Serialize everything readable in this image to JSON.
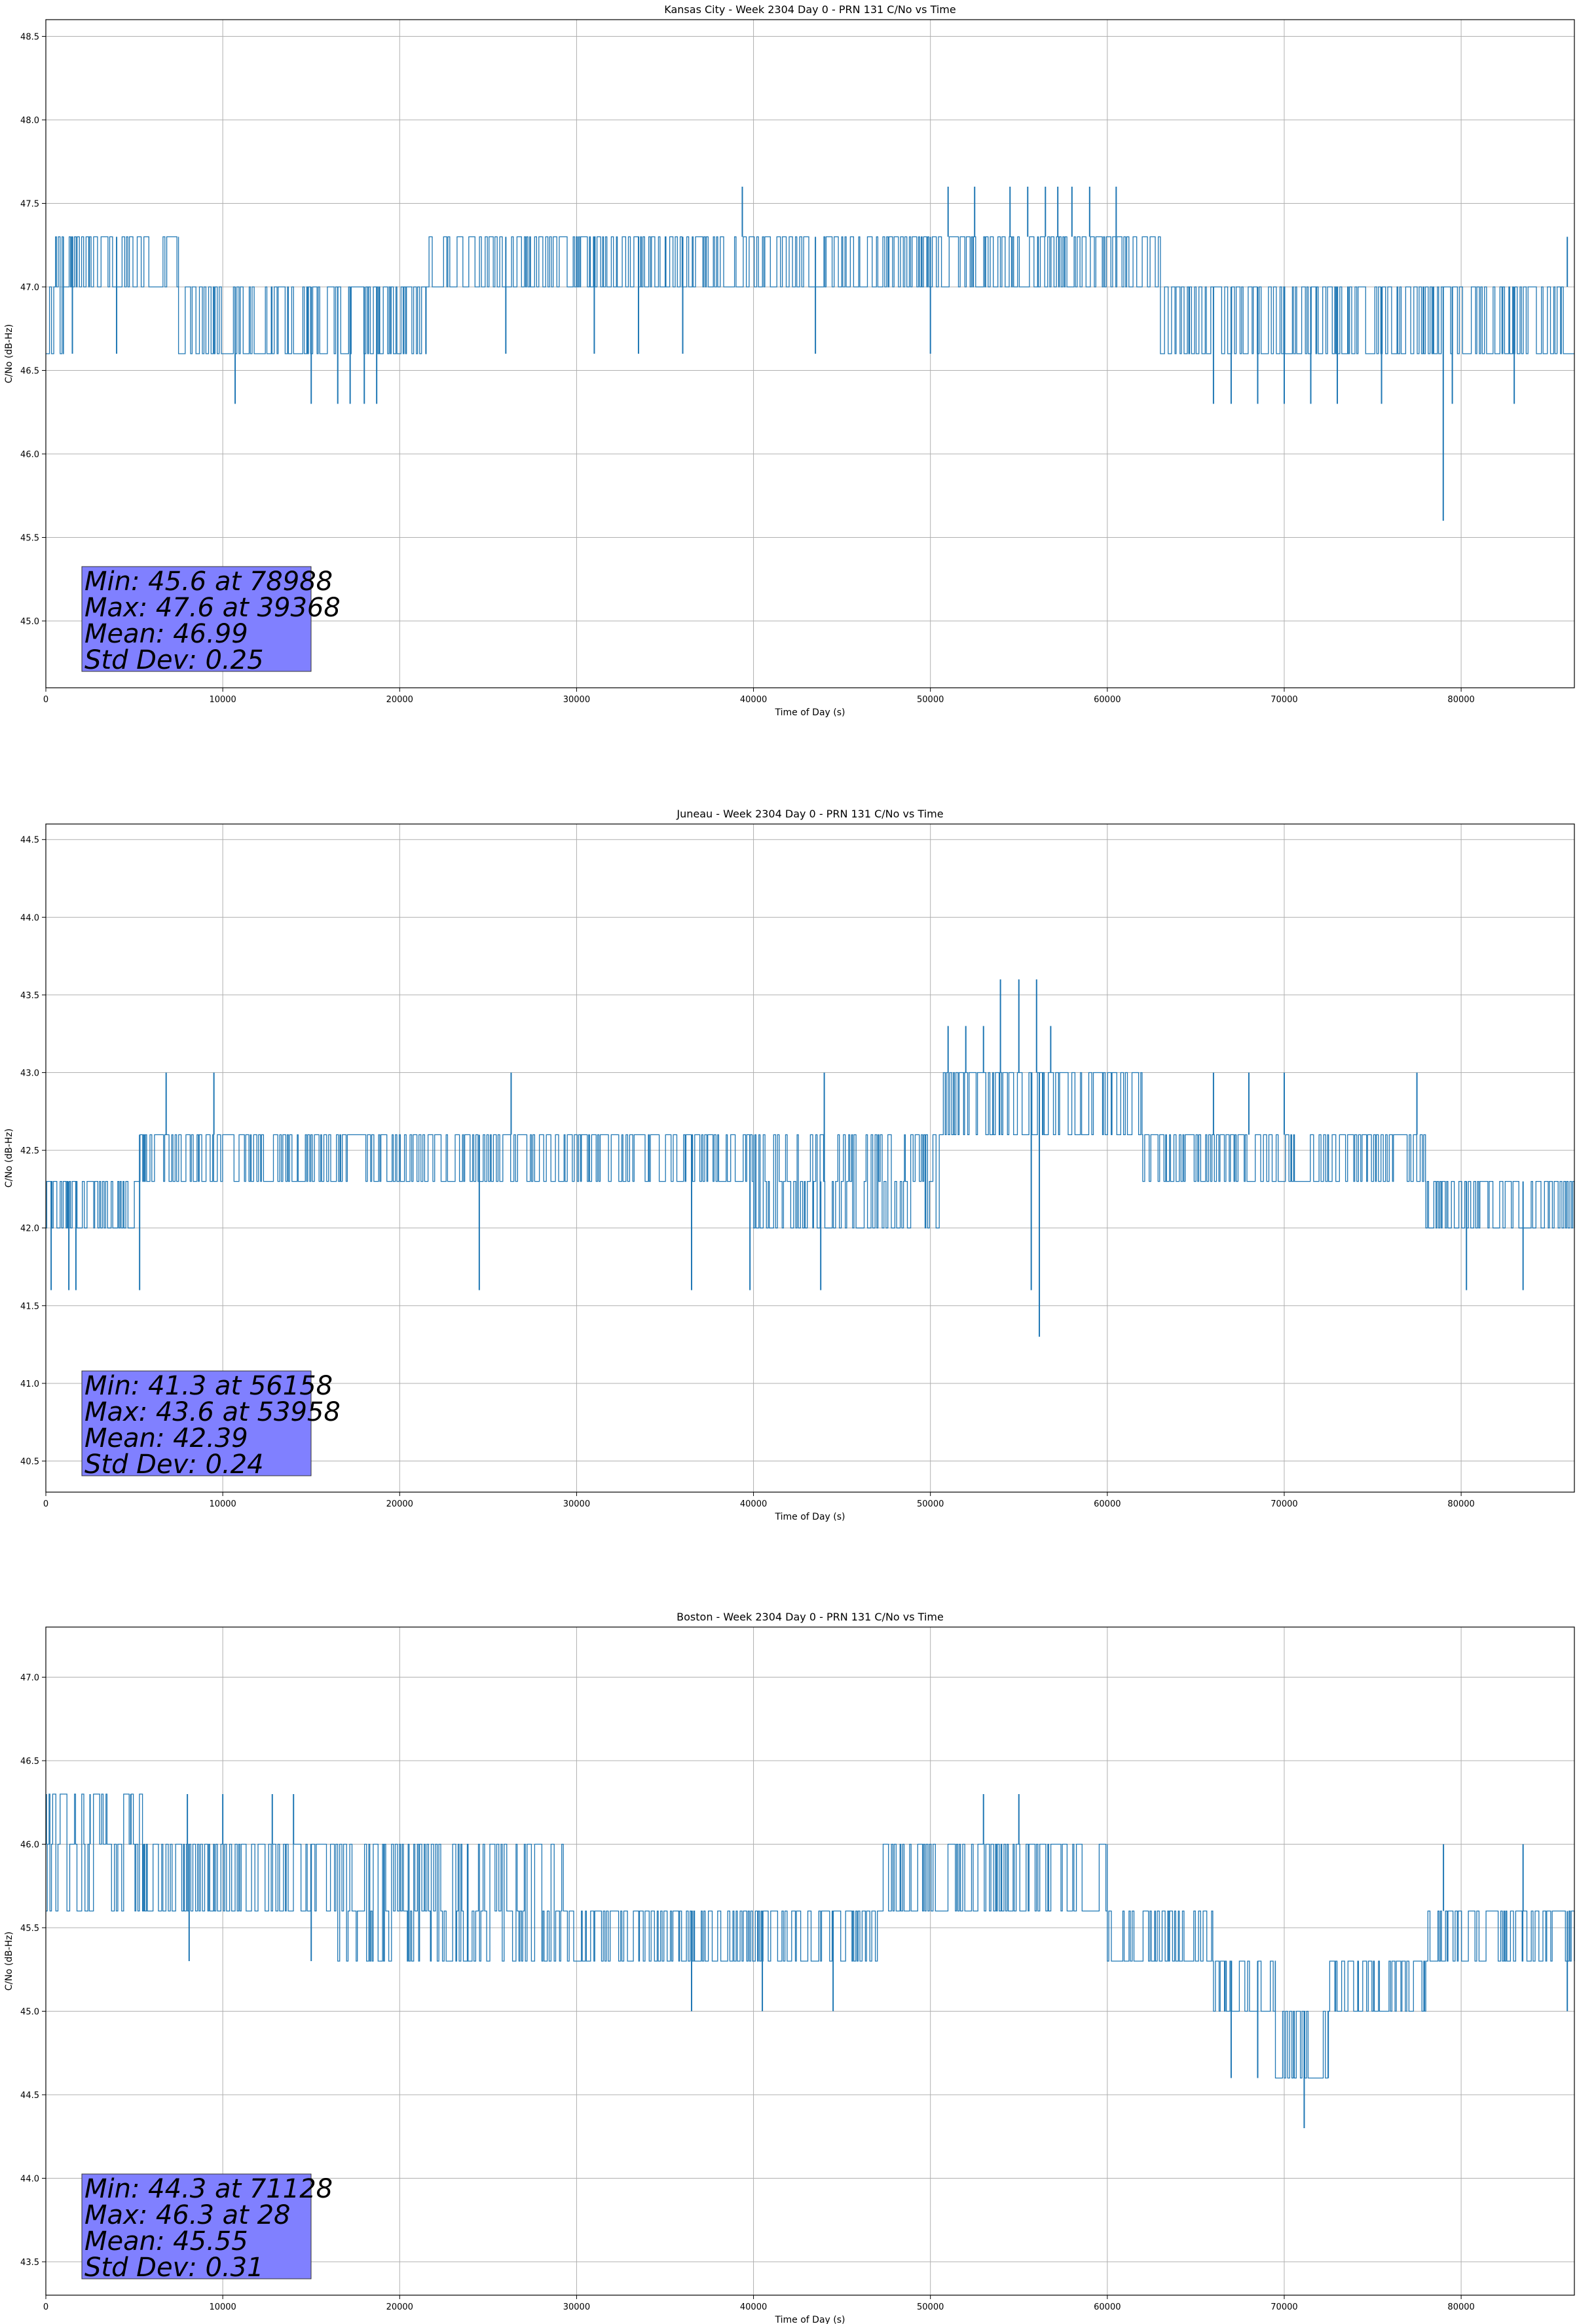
{
  "figure": {
    "background": "#ffffff",
    "series_color": "#1f77b4",
    "stats_box_color": "#8080ff",
    "grid_color": "#b0b0b0"
  },
  "chart_data": [
    {
      "type": "line",
      "title": "Kansas City - Week 2304 Day 0 - PRN 131 C/No vs Time",
      "xlabel": "Time of Day (s)",
      "ylabel": "C/No (dB-Hz)",
      "xlim": [
        0,
        86400
      ],
      "ylim": [
        44.6,
        48.6
      ],
      "xticks": [
        0,
        10000,
        20000,
        30000,
        40000,
        50000,
        60000,
        70000,
        80000
      ],
      "yticks": [
        45.0,
        45.5,
        46.0,
        46.5,
        47.0,
        47.5,
        48.0,
        48.5
      ],
      "grid": true,
      "stats": [
        "Min: 45.6 at 78988",
        "Max: 47.6 at 39368",
        "Mean: 46.99",
        "Std Dev: 0.25"
      ],
      "series": [
        {
          "segments": [
            {
              "x0": 0,
              "x1": 1000,
              "levels": [
                46.6,
                47.0,
                47.3
              ]
            },
            {
              "x0": 1000,
              "x1": 7500,
              "levels": [
                47.0,
                47.3
              ]
            },
            {
              "x0": 7500,
              "x1": 21500,
              "levels": [
                46.6,
                47.0
              ]
            },
            {
              "x0": 21500,
              "x1": 63000,
              "levels": [
                47.0,
                47.3
              ]
            },
            {
              "x0": 63000,
              "x1": 86400,
              "levels": [
                46.6,
                47.0
              ]
            }
          ],
          "spikes": [
            {
              "x": 1500,
              "y": 46.6
            },
            {
              "x": 4000,
              "y": 46.6
            },
            {
              "x": 10700,
              "y": 46.3
            },
            {
              "x": 15000,
              "y": 46.3
            },
            {
              "x": 16500,
              "y": 46.3
            },
            {
              "x": 17200,
              "y": 46.3
            },
            {
              "x": 18000,
              "y": 46.3
            },
            {
              "x": 18700,
              "y": 46.3
            },
            {
              "x": 26000,
              "y": 46.6
            },
            {
              "x": 31000,
              "y": 46.6
            },
            {
              "x": 33500,
              "y": 46.6
            },
            {
              "x": 36000,
              "y": 46.6
            },
            {
              "x": 39368,
              "y": 47.6
            },
            {
              "x": 43500,
              "y": 46.6
            },
            {
              "x": 50000,
              "y": 46.6
            },
            {
              "x": 51000,
              "y": 47.6
            },
            {
              "x": 52500,
              "y": 47.6
            },
            {
              "x": 54500,
              "y": 47.6
            },
            {
              "x": 55500,
              "y": 47.6
            },
            {
              "x": 56500,
              "y": 47.6
            },
            {
              "x": 57200,
              "y": 47.6
            },
            {
              "x": 58000,
              "y": 47.6
            },
            {
              "x": 59000,
              "y": 47.6
            },
            {
              "x": 60500,
              "y": 47.6
            },
            {
              "x": 66000,
              "y": 46.3
            },
            {
              "x": 67000,
              "y": 46.3
            },
            {
              "x": 68500,
              "y": 46.3
            },
            {
              "x": 70000,
              "y": 46.3
            },
            {
              "x": 71500,
              "y": 46.3
            },
            {
              "x": 73000,
              "y": 46.3
            },
            {
              "x": 75500,
              "y": 46.3
            },
            {
              "x": 78988,
              "y": 45.6
            },
            {
              "x": 79500,
              "y": 46.3
            },
            {
              "x": 83000,
              "y": 46.3
            },
            {
              "x": 86000,
              "y": 47.3
            }
          ]
        }
      ]
    },
    {
      "type": "line",
      "title": "Juneau - Week 2304 Day 0 - PRN 131 C/No vs Time",
      "xlabel": "Time of Day (s)",
      "ylabel": "C/No (dB-Hz)",
      "xlim": [
        0,
        86400
      ],
      "ylim": [
        40.3,
        44.6
      ],
      "xticks": [
        0,
        10000,
        20000,
        30000,
        40000,
        50000,
        60000,
        70000,
        80000
      ],
      "yticks": [
        40.5,
        41.0,
        41.5,
        42.0,
        42.5,
        43.0,
        43.5,
        44.0,
        44.5
      ],
      "grid": true,
      "stats": [
        "Min: 41.3 at 56158",
        "Max: 43.6 at 53958",
        "Mean: 42.39",
        "Std Dev: 0.24"
      ],
      "series": [
        {
          "segments": [
            {
              "x0": 0,
              "x1": 5000,
              "levels": [
                42.0,
                42.3
              ]
            },
            {
              "x0": 5000,
              "x1": 40000,
              "levels": [
                42.3,
                42.6
              ]
            },
            {
              "x0": 40000,
              "x1": 50500,
              "levels": [
                42.0,
                42.3,
                42.6
              ]
            },
            {
              "x0": 50500,
              "x1": 57000,
              "levels": [
                42.6,
                43.0
              ]
            },
            {
              "x0": 57000,
              "x1": 62000,
              "levels": [
                42.6,
                43.0
              ]
            },
            {
              "x0": 62000,
              "x1": 78000,
              "levels": [
                42.3,
                42.6
              ]
            },
            {
              "x0": 78000,
              "x1": 86400,
              "levels": [
                42.0,
                42.3
              ]
            }
          ],
          "spikes": [
            {
              "x": 300,
              "y": 41.6
            },
            {
              "x": 1300,
              "y": 41.6
            },
            {
              "x": 1700,
              "y": 41.6
            },
            {
              "x": 5300,
              "y": 41.6
            },
            {
              "x": 6800,
              "y": 43.0
            },
            {
              "x": 9500,
              "y": 43.0
            },
            {
              "x": 24500,
              "y": 41.6
            },
            {
              "x": 26300,
              "y": 43.0
            },
            {
              "x": 36500,
              "y": 41.6
            },
            {
              "x": 39800,
              "y": 41.6
            },
            {
              "x": 43800,
              "y": 41.6
            },
            {
              "x": 44000,
              "y": 43.0
            },
            {
              "x": 51000,
              "y": 43.3
            },
            {
              "x": 52000,
              "y": 43.3
            },
            {
              "x": 53000,
              "y": 43.3
            },
            {
              "x": 53958,
              "y": 43.6
            },
            {
              "x": 55000,
              "y": 43.6
            },
            {
              "x": 56000,
              "y": 43.6
            },
            {
              "x": 56158,
              "y": 41.3
            },
            {
              "x": 55700,
              "y": 41.6
            },
            {
              "x": 56800,
              "y": 43.3
            },
            {
              "x": 66000,
              "y": 43.0
            },
            {
              "x": 68000,
              "y": 43.0
            },
            {
              "x": 70000,
              "y": 43.0
            },
            {
              "x": 77500,
              "y": 43.0
            },
            {
              "x": 80300,
              "y": 41.6
            },
            {
              "x": 83500,
              "y": 41.6
            }
          ]
        }
      ]
    },
    {
      "type": "line",
      "title": "Boston - Week 2304 Day 0 - PRN 131 C/No vs Time",
      "xlabel": "Time of Day (s)",
      "ylabel": "C/No (dB-Hz)",
      "xlim": [
        0,
        86400
      ],
      "ylim": [
        43.3,
        47.3
      ],
      "xticks": [
        0,
        10000,
        20000,
        30000,
        40000,
        50000,
        60000,
        70000,
        80000
      ],
      "yticks": [
        43.5,
        44.0,
        44.5,
        45.0,
        45.5,
        46.0,
        46.5,
        47.0
      ],
      "grid": true,
      "stats": [
        "Min: 44.3 at 71128",
        "Max: 46.3 at 28",
        "Mean: 45.55",
        "Std Dev: 0.31"
      ],
      "series": [
        {
          "segments": [
            {
              "x0": 0,
              "x1": 5500,
              "levels": [
                45.6,
                46.0,
                46.3
              ]
            },
            {
              "x0": 5500,
              "x1": 16500,
              "levels": [
                45.6,
                46.0
              ]
            },
            {
              "x0": 16500,
              "x1": 29500,
              "levels": [
                45.3,
                45.6,
                46.0
              ]
            },
            {
              "x0": 29500,
              "x1": 47000,
              "levels": [
                45.3,
                45.6
              ]
            },
            {
              "x0": 47000,
              "x1": 60000,
              "levels": [
                45.6,
                46.0
              ]
            },
            {
              "x0": 60000,
              "x1": 66000,
              "levels": [
                45.3,
                45.6
              ]
            },
            {
              "x0": 66000,
              "x1": 69500,
              "levels": [
                45.0,
                45.3
              ]
            },
            {
              "x0": 69500,
              "x1": 72500,
              "levels": [
                44.6,
                45.0
              ]
            },
            {
              "x0": 72500,
              "x1": 78000,
              "levels": [
                45.0,
                45.3
              ]
            },
            {
              "x0": 78000,
              "x1": 86400,
              "levels": [
                45.3,
                45.6
              ]
            }
          ],
          "spikes": [
            {
              "x": 28,
              "y": 46.3
            },
            {
              "x": 2500,
              "y": 46.3
            },
            {
              "x": 4800,
              "y": 46.3
            },
            {
              "x": 8000,
              "y": 46.3
            },
            {
              "x": 8100,
              "y": 45.3
            },
            {
              "x": 10000,
              "y": 46.3
            },
            {
              "x": 12800,
              "y": 46.3
            },
            {
              "x": 14000,
              "y": 46.3
            },
            {
              "x": 15000,
              "y": 45.3
            },
            {
              "x": 36500,
              "y": 45.0
            },
            {
              "x": 40500,
              "y": 45.0
            },
            {
              "x": 44500,
              "y": 45.0
            },
            {
              "x": 53000,
              "y": 46.3
            },
            {
              "x": 55000,
              "y": 46.3
            },
            {
              "x": 67000,
              "y": 44.6
            },
            {
              "x": 68500,
              "y": 44.6
            },
            {
              "x": 71128,
              "y": 44.3
            },
            {
              "x": 79000,
              "y": 46.0
            },
            {
              "x": 83500,
              "y": 46.0
            },
            {
              "x": 86000,
              "y": 45.0
            }
          ]
        }
      ]
    }
  ]
}
